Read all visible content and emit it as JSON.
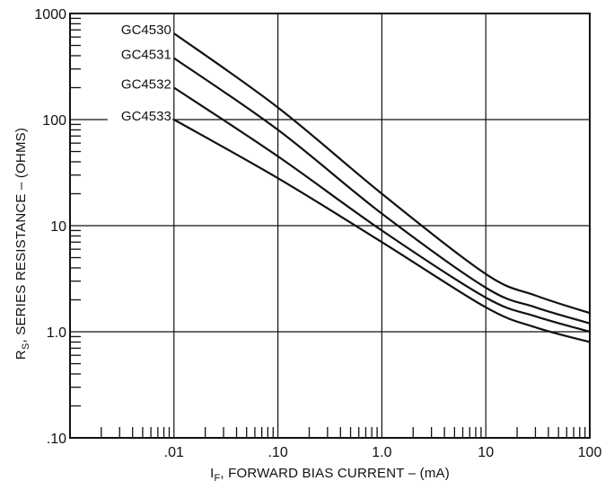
{
  "chart_data": {
    "type": "line",
    "xscale": "log",
    "yscale": "log",
    "xlim": [
      0.001,
      100
    ],
    "ylim": [
      0.1,
      1000
    ],
    "grid": true,
    "x_tick_labels": [
      {
        "value": 0.01,
        "label": ".01"
      },
      {
        "value": 0.1,
        "label": ".10"
      },
      {
        "value": 1,
        "label": "1.0"
      },
      {
        "value": 10,
        "label": "10"
      },
      {
        "value": 100,
        "label": "100"
      }
    ],
    "y_tick_labels": [
      {
        "value": 0.1,
        "label": ".10"
      },
      {
        "value": 1,
        "label": "1.0"
      },
      {
        "value": 10,
        "label": "10"
      },
      {
        "value": 100,
        "label": "100"
      },
      {
        "value": 1000,
        "label": "1000"
      }
    ],
    "xlabel": {
      "main": "I",
      "sub": "F",
      "rest": ", FORWARD BIAS CURRENT – (mA)"
    },
    "ylabel": {
      "main": "R",
      "sub": "S",
      "rest": ", SERIES RESISTANCE – (OHMS)"
    },
    "series": [
      {
        "name": "GC4530",
        "x": [
          0.01,
          0.1,
          1,
          10,
          30,
          100
        ],
        "y": [
          650,
          130,
          20,
          3.5,
          2.2,
          1.5
        ]
      },
      {
        "name": "GC4531",
        "x": [
          0.01,
          0.1,
          1,
          10,
          30,
          100
        ],
        "y": [
          380,
          80,
          13,
          2.6,
          1.7,
          1.2
        ]
      },
      {
        "name": "GC4532",
        "x": [
          0.01,
          0.1,
          1,
          10,
          30,
          100
        ],
        "y": [
          200,
          45,
          9,
          2.1,
          1.4,
          1.0
        ]
      },
      {
        "name": "GC4533",
        "x": [
          0.01,
          0.1,
          1,
          10,
          30,
          100
        ],
        "y": [
          100,
          28,
          7,
          1.7,
          1.1,
          0.8
        ]
      }
    ]
  }
}
